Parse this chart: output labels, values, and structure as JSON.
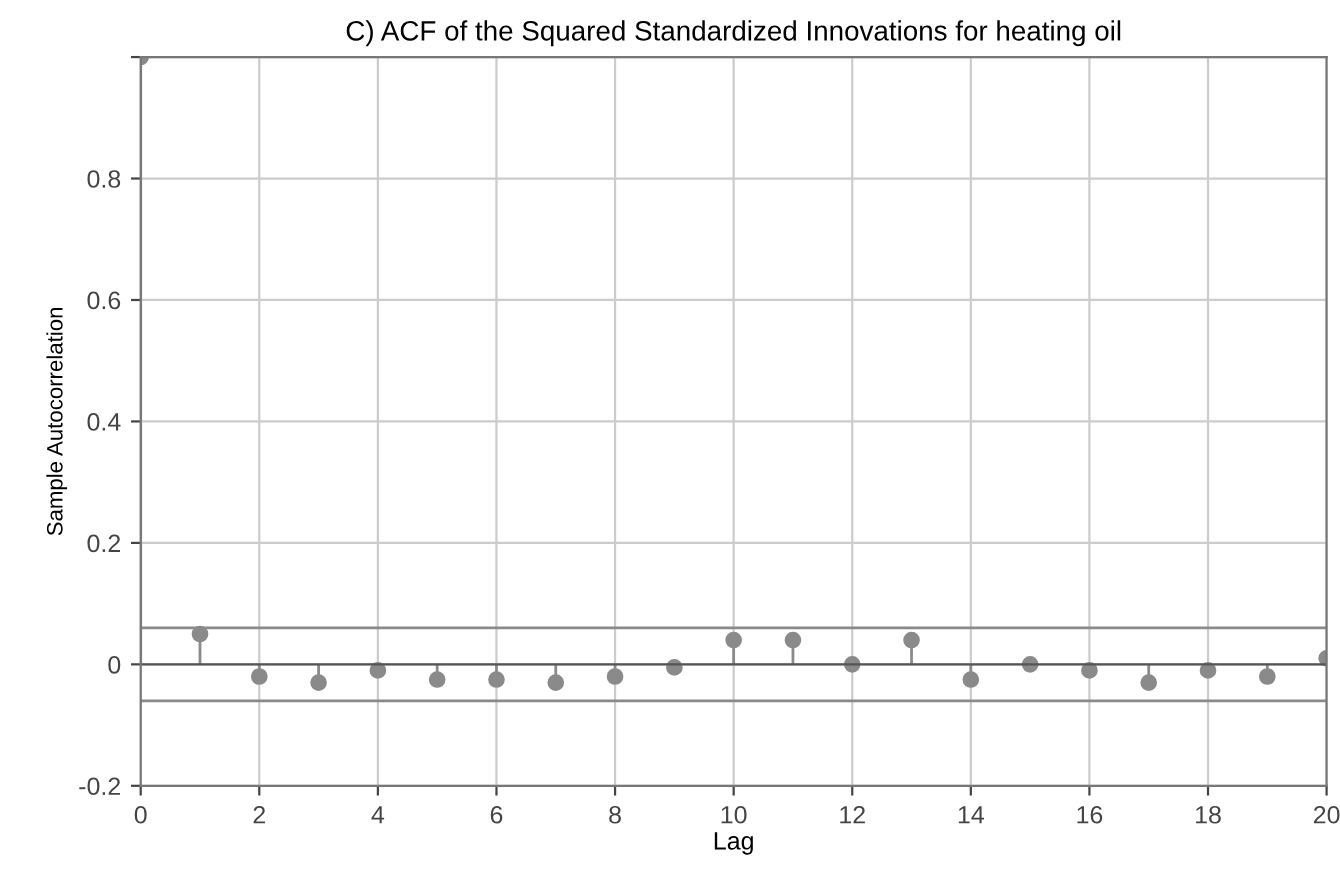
{
  "chart_data": {
    "type": "lollipop",
    "title": "C) ACF of the Squared Standardized Innovations for heating oil",
    "xlabel": "Lag",
    "ylabel": "Sample Autocorrelation",
    "x": [
      0,
      1,
      2,
      3,
      4,
      5,
      6,
      7,
      8,
      9,
      10,
      11,
      12,
      13,
      14,
      15,
      16,
      17,
      18,
      19,
      20
    ],
    "series": [
      {
        "color": "#8a8a8a",
        "values": [
          1,
          0.05,
          -0.02,
          -0.03,
          -0.01,
          -0.025,
          -0.025,
          -0.03,
          -0.02,
          -0.005,
          0.04,
          0.04,
          0.0,
          0.04,
          -0.025,
          0.0,
          -0.01,
          -0.03,
          -0.01,
          -0.02,
          0.01
        ]
      }
    ],
    "ref_lines": [
      {
        "axis": "y",
        "value": 0.06,
        "color": "#8a8a8a"
      },
      {
        "axis": "y",
        "value": -0.06,
        "color": "#8a8a8a"
      }
    ],
    "xlim": [
      0,
      20
    ],
    "xticks": [
      0,
      2,
      4,
      6,
      8,
      10,
      12,
      14,
      16,
      18,
      20
    ],
    "ylim": [
      -0.2,
      1
    ],
    "yticks": [
      -0.2,
      0,
      0.2,
      0.4,
      0.6,
      0.8,
      {
        "value": 1,
        "label": null
      }
    ],
    "grid": true,
    "marker": "circle"
  }
}
